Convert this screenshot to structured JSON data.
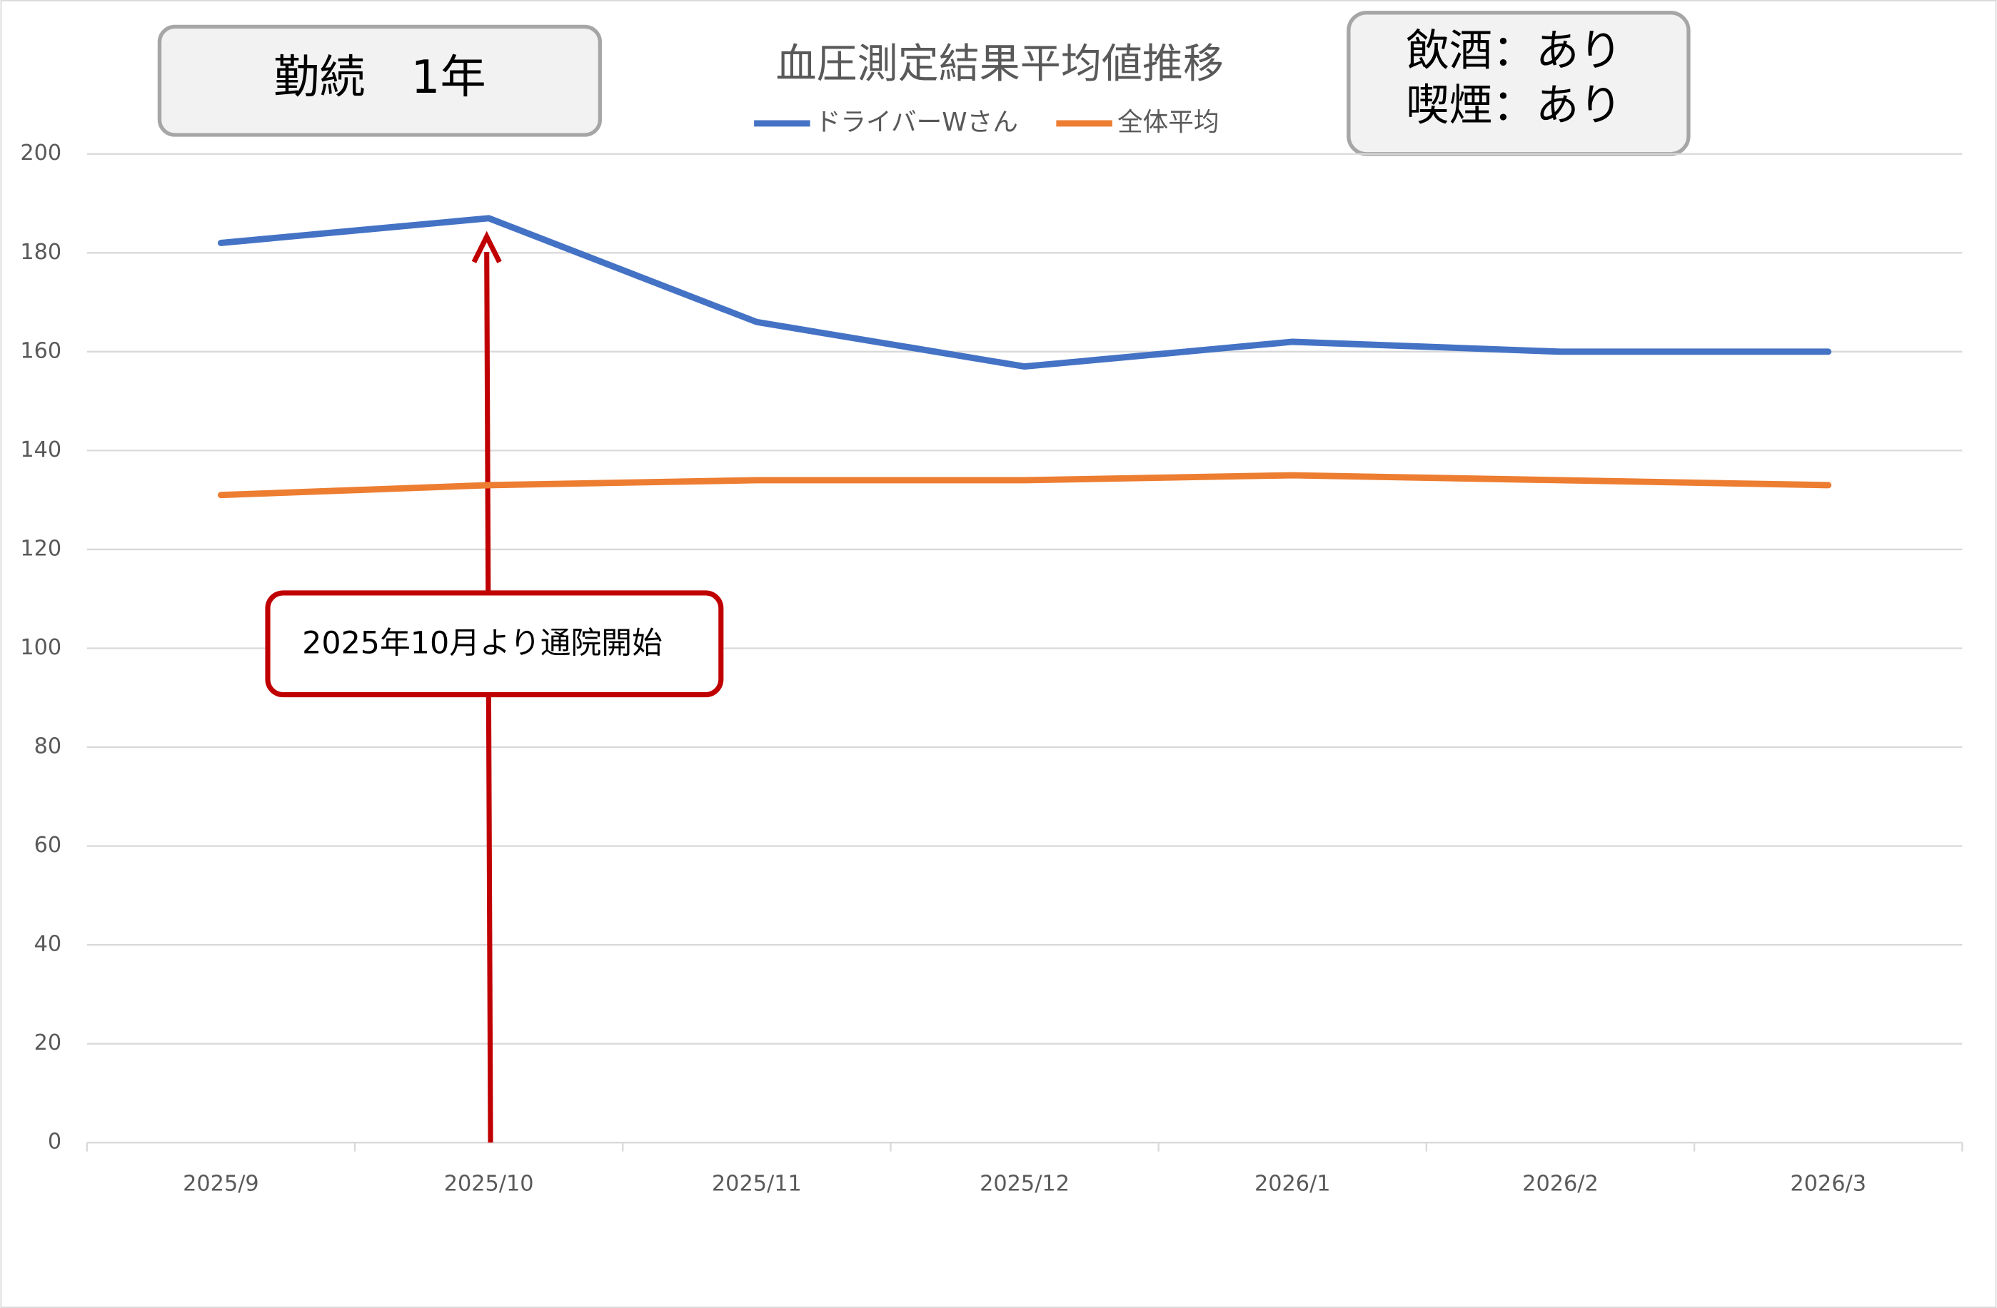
{
  "chart_data": {
    "type": "line",
    "title": "血圧測定結果平均値推移",
    "categories": [
      "2025/9",
      "2025/10",
      "2025/11",
      "2025/12",
      "2026/1",
      "2026/2",
      "2026/3"
    ],
    "series": [
      {
        "name": "ドライバーWさん",
        "color": "#4472c4",
        "values": [
          182,
          187,
          166,
          157,
          162,
          160,
          160
        ]
      },
      {
        "name": "全体平均",
        "color": "#ed7d31",
        "values": [
          131,
          133,
          134,
          134,
          135,
          134,
          133
        ]
      }
    ],
    "ylim": [
      0,
      200
    ],
    "yticks": [
      0,
      20,
      40,
      60,
      80,
      100,
      120,
      140,
      160,
      180,
      200
    ],
    "grid": true,
    "legend": "top",
    "annotations": [
      "勤続　1年",
      "飲酒：あり",
      "喫煙：あり",
      "2025年10月より通院開始"
    ]
  }
}
